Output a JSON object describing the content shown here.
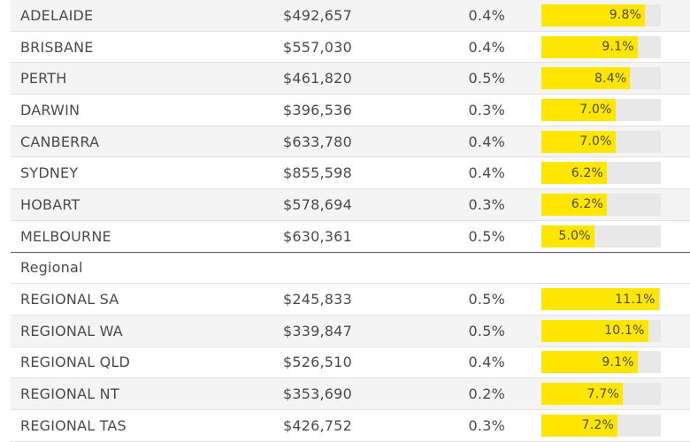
{
  "colors": {
    "bar_fill": "#ffe600",
    "bar_track": "#e8e8e8",
    "text": "#4a4a4a"
  },
  "bar_max_percent": 11.3,
  "capital_rows": [
    {
      "name": "ADELAIDE",
      "price": "$492,657",
      "change": "0.4%",
      "bar_label": "9.8%",
      "bar_value": 9.8
    },
    {
      "name": "BRISBANE",
      "price": "$557,030",
      "change": "0.4%",
      "bar_label": "9.1%",
      "bar_value": 9.1
    },
    {
      "name": "PERTH",
      "price": "$461,820",
      "change": "0.5%",
      "bar_label": "8.4%",
      "bar_value": 8.4
    },
    {
      "name": "DARWIN",
      "price": "$396,536",
      "change": "0.3%",
      "bar_label": "7.0%",
      "bar_value": 7.0
    },
    {
      "name": "CANBERRA",
      "price": "$633,780",
      "change": "0.4%",
      "bar_label": "7.0%",
      "bar_value": 7.0
    },
    {
      "name": "SYDNEY",
      "price": "$855,598",
      "change": "0.4%",
      "bar_label": "6.2%",
      "bar_value": 6.2
    },
    {
      "name": "HOBART",
      "price": "$578,694",
      "change": "0.3%",
      "bar_label": "6.2%",
      "bar_value": 6.2
    },
    {
      "name": "MELBOURNE",
      "price": "$630,361",
      "change": "0.5%",
      "bar_label": "5.0%",
      "bar_value": 5.0
    }
  ],
  "regional_section_label": "Regional",
  "regional_rows": [
    {
      "name": "REGIONAL SA",
      "price": "$245,833",
      "change": "0.5%",
      "bar_label": "11.1%",
      "bar_value": 11.1
    },
    {
      "name": "REGIONAL WA",
      "price": "$339,847",
      "change": "0.5%",
      "bar_label": "10.1%",
      "bar_value": 10.1
    },
    {
      "name": "REGIONAL QLD",
      "price": "$526,510",
      "change": "0.4%",
      "bar_label": "9.1%",
      "bar_value": 9.1
    },
    {
      "name": "REGIONAL NT",
      "price": "$353,690",
      "change": "0.2%",
      "bar_label": "7.7%",
      "bar_value": 7.7
    },
    {
      "name": "REGIONAL TAS",
      "price": "$426,752",
      "change": "0.3%",
      "bar_label": "7.2%",
      "bar_value": 7.2
    }
  ]
}
